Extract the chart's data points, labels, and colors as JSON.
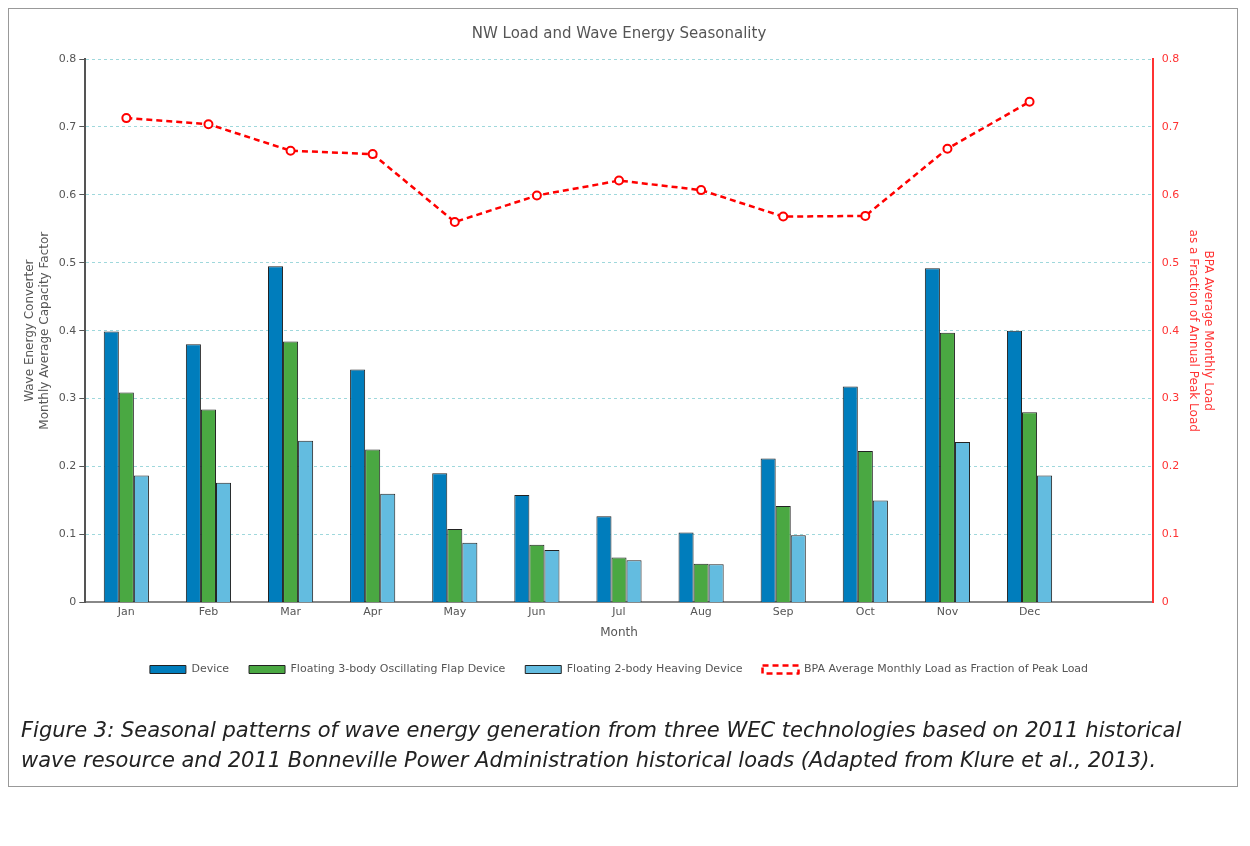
{
  "chart_data": {
    "type": "bar",
    "title": "NW Load and Wave Energy Seasonality",
    "xlabel": "Month",
    "ylabel": "Wave Energy Converter\nMonthly Average Capacity Factor",
    "y2label": "BPA Average Monthly Load\nas a Fraction of Annual Peak Load",
    "categories": [
      "Jan",
      "Feb",
      "Mar",
      "Apr",
      "May",
      "Jun",
      "Jul",
      "Aug",
      "Sep",
      "Oct",
      "Nov",
      "Dec",
      null
    ],
    "series": [
      {
        "name": "Device",
        "color": "#007dbc",
        "values": [
          0.399,
          0.38,
          0.495,
          0.343,
          0.19,
          0.158,
          0.127,
          0.103,
          0.212,
          0.318,
          0.492,
          0.4,
          null
        ]
      },
      {
        "name": "Floating 3-body Oscillating Flap Device",
        "color": "#4aa842",
        "values": [
          0.309,
          0.284,
          0.384,
          0.225,
          0.108,
          0.085,
          0.066,
          0.057,
          0.142,
          0.223,
          0.397,
          0.28,
          null
        ]
      },
      {
        "name": "Floating 2-body Heaving Device",
        "color": "#63bce0",
        "values": [
          0.187,
          0.176,
          0.238,
          0.16,
          0.088,
          0.077,
          0.062,
          0.056,
          0.099,
          0.15,
          0.236,
          0.187,
          null
        ]
      },
      {
        "name": "BPA Average Monthly Load as Fraction of Peak Load",
        "type": "line",
        "axis": "y2",
        "color": "#ff0000",
        "marker": "circle",
        "line_style": "dashed",
        "values": [
          0.713,
          0.704,
          0.665,
          0.66,
          0.56,
          0.599,
          0.621,
          0.607,
          0.568,
          0.569,
          0.668,
          0.737,
          null
        ]
      }
    ],
    "ylim": [
      0,
      0.8
    ],
    "yticks": [
      0,
      0.1,
      0.2,
      0.3,
      0.4,
      0.5,
      0.6,
      0.7,
      0.8
    ],
    "y2lim": [
      0,
      0.8
    ],
    "y2ticks": [
      0,
      0.1,
      0.2,
      0.3,
      0.4,
      0.5,
      0.6,
      0.7,
      0.8
    ],
    "grid": "y",
    "legend": "bottom",
    "annotations": [
      "Figure 3: Seasonal patterns of wave energy generation from three WEC technologies based on 2011 historical wave resource and 2011 Bonneville Power Administration historical loads (Adapted from Klure et al., 2013)."
    ]
  }
}
